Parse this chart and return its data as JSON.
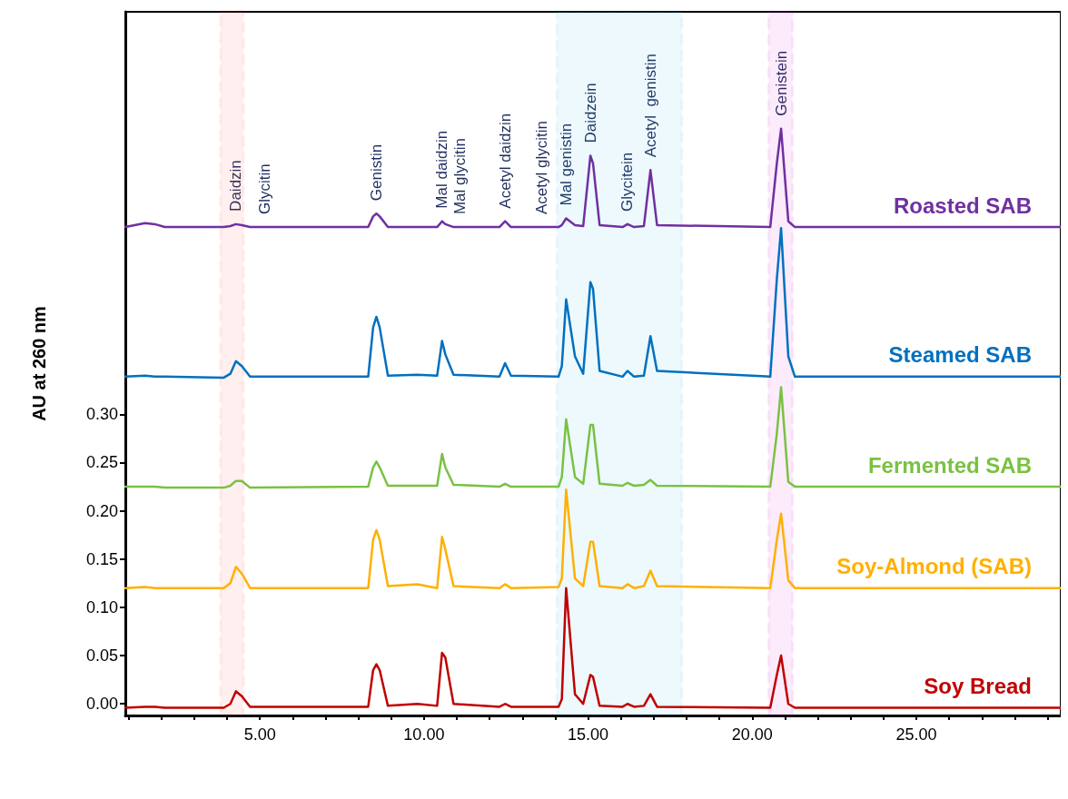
{
  "chart_data": {
    "type": "line",
    "ylabel": "AU at 260 nm",
    "x": [
      0.9,
      1.5,
      1.8,
      2.1,
      3.9,
      4.1,
      4.27,
      4.45,
      4.7,
      8.3,
      8.45,
      8.55,
      8.65,
      8.9,
      9.8,
      10.4,
      10.55,
      10.65,
      10.9,
      12.3,
      12.47,
      12.65,
      14.1,
      14.2,
      14.33,
      14.6,
      14.85,
      15.07,
      15.15,
      15.35,
      16.05,
      16.2,
      16.4,
      16.7,
      16.9,
      17.1,
      20.55,
      20.75,
      20.88,
      21.1,
      21.3,
      29.4
    ],
    "series": [
      {
        "name": "Roasted SAB",
        "color": "#7030a0",
        "values": [
          0.494,
          0.498,
          0.497,
          0.494,
          0.494,
          0.495,
          0.497,
          0.496,
          0.494,
          0.494,
          0.505,
          0.508,
          0.505,
          0.494,
          0.494,
          0.494,
          0.5,
          0.497,
          0.494,
          0.494,
          0.5,
          0.494,
          0.494,
          0.496,
          0.503,
          0.496,
          0.495,
          0.568,
          0.56,
          0.496,
          0.494,
          0.497,
          0.494,
          0.495,
          0.553,
          0.496,
          0.494,
          0.56,
          0.596,
          0.5,
          0.494,
          0.494
        ]
      },
      {
        "name": "Steamed SAB",
        "color": "#0070c0",
        "values": [
          0.339,
          0.34,
          0.339,
          0.339,
          0.338,
          0.342,
          0.355,
          0.35,
          0.339,
          0.339,
          0.39,
          0.401,
          0.39,
          0.34,
          0.341,
          0.34,
          0.376,
          0.362,
          0.341,
          0.339,
          0.353,
          0.34,
          0.339,
          0.35,
          0.419,
          0.36,
          0.342,
          0.437,
          0.43,
          0.345,
          0.339,
          0.345,
          0.339,
          0.34,
          0.381,
          0.345,
          0.339,
          0.44,
          0.493,
          0.36,
          0.339,
          0.339
        ]
      },
      {
        "name": "Fermented SAB",
        "color": "#7ac143",
        "values": [
          0.225,
          0.225,
          0.225,
          0.224,
          0.224,
          0.226,
          0.231,
          0.231,
          0.224,
          0.225,
          0.245,
          0.251,
          0.245,
          0.226,
          0.226,
          0.226,
          0.259,
          0.245,
          0.227,
          0.225,
          0.228,
          0.225,
          0.225,
          0.235,
          0.295,
          0.235,
          0.228,
          0.289,
          0.289,
          0.228,
          0.226,
          0.229,
          0.226,
          0.227,
          0.232,
          0.226,
          0.225,
          0.28,
          0.328,
          0.23,
          0.225,
          0.225
        ]
      },
      {
        "name": "Soy-Almond (SAB)",
        "color": "#ffb000",
        "values": [
          0.12,
          0.121,
          0.12,
          0.12,
          0.12,
          0.125,
          0.142,
          0.135,
          0.12,
          0.12,
          0.17,
          0.18,
          0.17,
          0.122,
          0.124,
          0.12,
          0.173,
          0.16,
          0.122,
          0.12,
          0.124,
          0.12,
          0.121,
          0.13,
          0.222,
          0.13,
          0.122,
          0.168,
          0.168,
          0.122,
          0.12,
          0.124,
          0.12,
          0.122,
          0.138,
          0.122,
          0.12,
          0.17,
          0.197,
          0.128,
          0.12,
          0.12
        ]
      },
      {
        "name": "Soy Bread",
        "color": "#c00000",
        "values": [
          -0.004,
          -0.003,
          -0.003,
          -0.004,
          -0.004,
          0.0,
          0.013,
          0.008,
          -0.003,
          -0.003,
          0.035,
          0.041,
          0.035,
          -0.002,
          0.0,
          -0.002,
          0.053,
          0.048,
          0.0,
          -0.003,
          0.0,
          -0.003,
          -0.003,
          0.005,
          0.12,
          0.01,
          0.0,
          0.03,
          0.028,
          -0.002,
          -0.003,
          0.0,
          -0.003,
          -0.002,
          0.01,
          -0.003,
          -0.004,
          0.03,
          0.05,
          0.0,
          -0.004,
          -0.004
        ]
      }
    ],
    "annotations": [
      {
        "text": "Daidzin",
        "x": 4.27,
        "y": 0.497
      },
      {
        "text": "Glycitin",
        "x": 5.15,
        "y": 0.494
      },
      {
        "text": "Genistin",
        "x": 8.55,
        "y": 0.508
      },
      {
        "text": "Mal daidzin",
        "x": 10.55,
        "y": 0.5
      },
      {
        "text": "Mal glycitin",
        "x": 11.1,
        "y": 0.494
      },
      {
        "text": "Acetyl daidzin",
        "x": 12.47,
        "y": 0.5
      },
      {
        "text": "Acetyl glycitin",
        "x": 13.6,
        "y": 0.494
      },
      {
        "text": "Mal genistin",
        "x": 14.33,
        "y": 0.503
      },
      {
        "text": "Daidzein",
        "x": 15.07,
        "y": 0.568
      },
      {
        "text": "Glycitein",
        "x": 16.2,
        "y": 0.497
      },
      {
        "text": "Acetyl  genistin",
        "x": 16.9,
        "y": 0.553
      },
      {
        "text": "Genistein",
        "x": 20.88,
        "y": 0.596
      }
    ],
    "bands": [
      {
        "axis": "x",
        "from": 3.8,
        "to": 4.5,
        "color": "#ff3b2f"
      },
      {
        "axis": "x",
        "from": 14.05,
        "to": 17.86,
        "color": "#1ab2e8"
      },
      {
        "axis": "x",
        "from": 20.5,
        "to": 21.23,
        "color": "#cc00cc"
      }
    ],
    "xlim": [
      0.9,
      29.4
    ],
    "xticks": [
      {
        "value": 1,
        "label": null
      },
      {
        "value": 2,
        "label": null
      },
      {
        "value": 3,
        "label": null
      },
      {
        "value": 4,
        "label": null
      },
      {
        "value": 5,
        "label": "5.00"
      },
      {
        "value": 6,
        "label": null
      },
      {
        "value": 7,
        "label": null
      },
      {
        "value": 8,
        "label": null
      },
      {
        "value": 9,
        "label": null
      },
      {
        "value": 10,
        "label": "10.00"
      },
      {
        "value": 11,
        "label": null
      },
      {
        "value": 12,
        "label": null
      },
      {
        "value": 13,
        "label": null
      },
      {
        "value": 14,
        "label": null
      },
      {
        "value": 15,
        "label": "15.00"
      },
      {
        "value": 16,
        "label": null
      },
      {
        "value": 17,
        "label": null
      },
      {
        "value": 18,
        "label": null
      },
      {
        "value": 19,
        "label": null
      },
      {
        "value": 20,
        "label": "20.00"
      },
      {
        "value": 21,
        "label": null
      },
      {
        "value": 22,
        "label": null
      },
      {
        "value": 23,
        "label": null
      },
      {
        "value": 24,
        "label": null
      },
      {
        "value": 25,
        "label": "25.00"
      },
      {
        "value": 26,
        "label": null
      },
      {
        "value": 27,
        "label": null
      },
      {
        "value": 28,
        "label": null
      },
      {
        "value": 29,
        "label": null
      }
    ],
    "ylim": [
      -0.012,
      0.717
    ],
    "yticks": [
      {
        "value": 0,
        "label": "0.00"
      },
      {
        "value": 0.05,
        "label": "0.05"
      },
      {
        "value": 0.1,
        "label": "0.10"
      },
      {
        "value": 0.15,
        "label": "0.15"
      },
      {
        "value": 0.2,
        "label": "0.20"
      },
      {
        "value": 0.25,
        "label": "0.25"
      },
      {
        "value": 0.3,
        "label": "0.30"
      }
    ],
    "grid": false,
    "legend": false,
    "marker": "none",
    "line_style": "solid"
  }
}
